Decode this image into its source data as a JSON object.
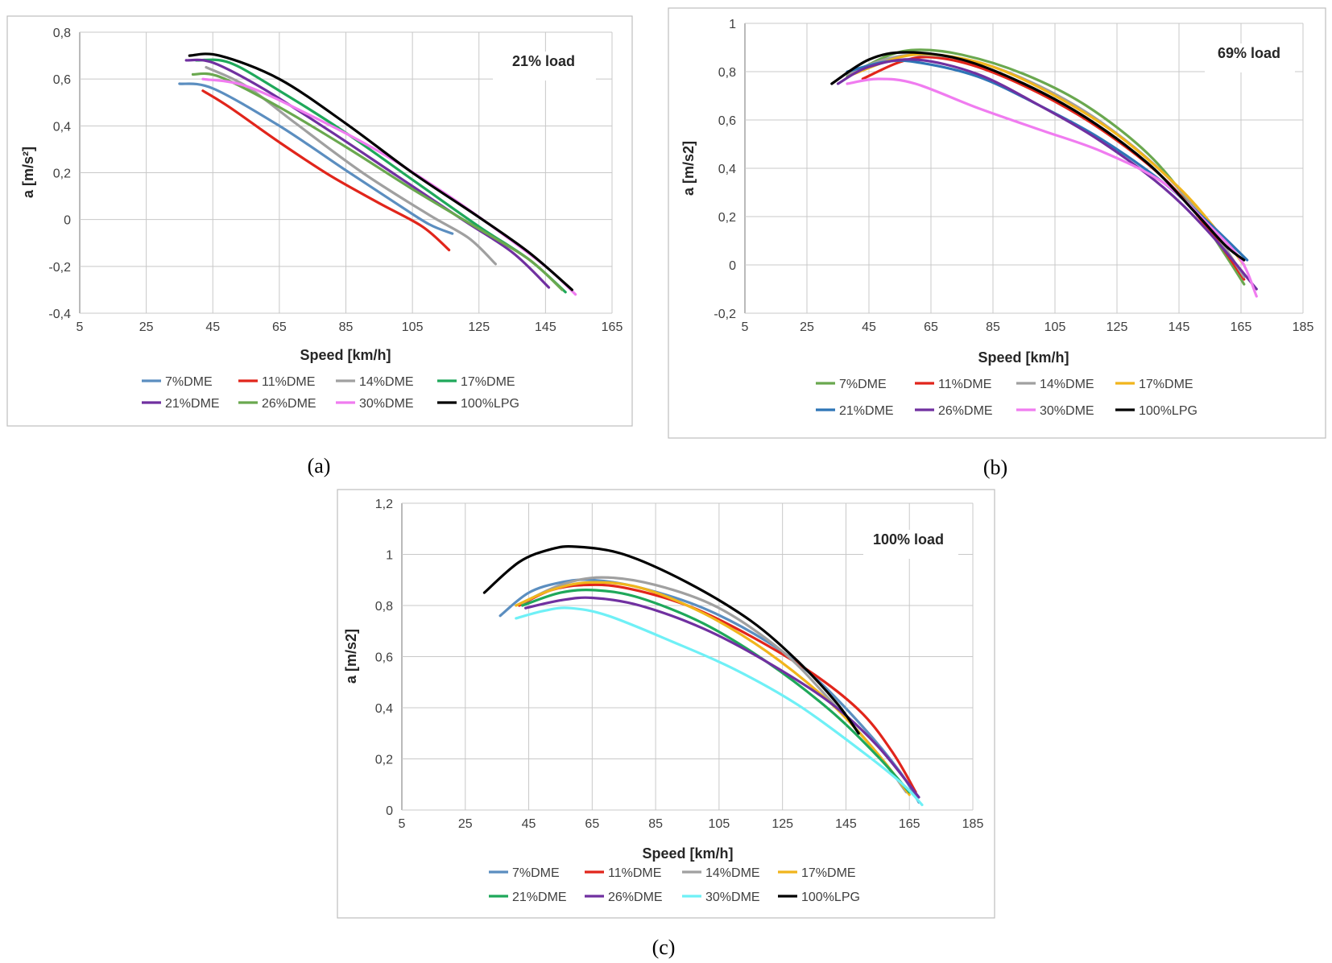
{
  "chart_data": [
    {
      "type": "line",
      "panel": "(a)",
      "caption": "(a)",
      "title": "21% load",
      "xlabel": "Speed [km/h]",
      "ylabel": "a [m/s²]",
      "xlim": [
        5,
        165
      ],
      "ylim": [
        -0.4,
        0.8
      ],
      "xticks": [
        5,
        25,
        45,
        65,
        85,
        105,
        125,
        145,
        165
      ],
      "xtick_labels": [
        "5",
        "25",
        "45",
        "65",
        "85",
        "105",
        "125",
        "145",
        "165"
      ],
      "yticks": [
        -0.4,
        -0.2,
        0,
        0.2,
        0.4,
        0.6,
        0.8
      ],
      "ytick_labels": [
        "-0,4",
        "-0,2",
        "0",
        "0,2",
        "0,4",
        "0,6",
        "0,8"
      ],
      "grid": true,
      "legend_position": "bottom",
      "series": [
        {
          "name": "7%DME",
          "color": "#5b8ec0",
          "points": [
            [
              35,
              0.58
            ],
            [
              45,
              0.56
            ],
            [
              65,
              0.4
            ],
            [
              85,
              0.21
            ],
            [
              100,
              0.07
            ],
            [
              110,
              -0.02
            ],
            [
              117,
              -0.06
            ]
          ]
        },
        {
          "name": "11%DME",
          "color": "#e1251b",
          "points": [
            [
              42,
              0.55
            ],
            [
              50,
              0.48
            ],
            [
              65,
              0.33
            ],
            [
              80,
              0.19
            ],
            [
              95,
              0.07
            ],
            [
              108,
              -0.03
            ],
            [
              116,
              -0.13
            ]
          ]
        },
        {
          "name": "14%DME",
          "color": "#a0a0a0",
          "points": [
            [
              43,
              0.65
            ],
            [
              55,
              0.57
            ],
            [
              70,
              0.41
            ],
            [
              90,
              0.2
            ],
            [
              110,
              0.02
            ],
            [
              122,
              -0.08
            ],
            [
              130,
              -0.19
            ]
          ]
        },
        {
          "name": "17%DME",
          "color": "#1fa85a",
          "points": [
            [
              40,
              0.68
            ],
            [
              50,
              0.67
            ],
            [
              65,
              0.55
            ],
            [
              85,
              0.37
            ],
            [
              105,
              0.17
            ],
            [
              125,
              -0.03
            ],
            [
              140,
              -0.17
            ],
            [
              151,
              -0.31
            ]
          ]
        },
        {
          "name": "21%DME",
          "color": "#7030a0",
          "points": [
            [
              37,
              0.68
            ],
            [
              45,
              0.67
            ],
            [
              60,
              0.56
            ],
            [
              80,
              0.38
            ],
            [
              100,
              0.19
            ],
            [
              120,
              0.0
            ],
            [
              135,
              -0.14
            ],
            [
              146,
              -0.29
            ]
          ]
        },
        {
          "name": "26%DME",
          "color": "#6aa84f",
          "points": [
            [
              39,
              0.62
            ],
            [
              47,
              0.61
            ],
            [
              65,
              0.48
            ],
            [
              85,
              0.31
            ],
            [
              105,
              0.13
            ],
            [
              125,
              -0.04
            ],
            [
              140,
              -0.17
            ],
            [
              150,
              -0.3
            ]
          ]
        },
        {
          "name": "30%DME",
          "color": "#f07cf0",
          "points": [
            [
              42,
              0.6
            ],
            [
              55,
              0.57
            ],
            [
              75,
              0.44
            ],
            [
              95,
              0.29
            ],
            [
              115,
              0.11
            ],
            [
              130,
              -0.04
            ],
            [
              145,
              -0.2
            ],
            [
              154,
              -0.32
            ]
          ]
        },
        {
          "name": "100%LPG",
          "color": "#000000",
          "points": [
            [
              38,
              0.7
            ],
            [
              47,
              0.7
            ],
            [
              65,
              0.6
            ],
            [
              85,
              0.41
            ],
            [
              105,
              0.2
            ],
            [
              125,
              0.01
            ],
            [
              140,
              -0.14
            ],
            [
              153,
              -0.3
            ]
          ]
        }
      ]
    },
    {
      "type": "line",
      "panel": "(b)",
      "caption": "(b)",
      "title": "69% load",
      "xlabel": "Speed [km/h]",
      "ylabel": "a [m/s2]",
      "xlim": [
        5,
        185
      ],
      "ylim": [
        -0.2,
        1
      ],
      "xticks": [
        5,
        25,
        45,
        65,
        85,
        105,
        125,
        145,
        165,
        185
      ],
      "xtick_labels": [
        "5",
        "25",
        "45",
        "65",
        "85",
        "105",
        "125",
        "145",
        "165",
        "185"
      ],
      "yticks": [
        -0.2,
        0,
        0.2,
        0.4,
        0.6,
        0.8,
        1
      ],
      "ytick_labels": [
        "-0,2",
        "0",
        "0,2",
        "0,4",
        "0,6",
        "0,8",
        "1"
      ],
      "grid": true,
      "legend_position": "bottom",
      "series": [
        {
          "name": "7%DME",
          "color": "#6aa84f",
          "points": [
            [
              38,
              0.78
            ],
            [
              50,
              0.86
            ],
            [
              60,
              0.89
            ],
            [
              75,
              0.87
            ],
            [
              95,
              0.79
            ],
            [
              115,
              0.66
            ],
            [
              135,
              0.46
            ],
            [
              150,
              0.23
            ],
            [
              160,
              0.04
            ],
            [
              166,
              -0.08
            ]
          ]
        },
        {
          "name": "11%DME",
          "color": "#e1251b",
          "points": [
            [
              43,
              0.77
            ],
            [
              55,
              0.84
            ],
            [
              65,
              0.86
            ],
            [
              80,
              0.82
            ],
            [
              100,
              0.71
            ],
            [
              120,
              0.56
            ],
            [
              140,
              0.36
            ],
            [
              155,
              0.14
            ],
            [
              166,
              -0.06
            ]
          ]
        },
        {
          "name": "14%DME",
          "color": "#a0a0a0",
          "points": [
            [
              38,
              0.79
            ],
            [
              50,
              0.85
            ],
            [
              62,
              0.87
            ],
            [
              80,
              0.84
            ],
            [
              100,
              0.74
            ],
            [
              120,
              0.59
            ],
            [
              140,
              0.38
            ],
            [
              155,
              0.16
            ],
            [
              166,
              -0.05
            ]
          ]
        },
        {
          "name": "17%DME",
          "color": "#f1b51c",
          "points": [
            [
              40,
              0.79
            ],
            [
              55,
              0.86
            ],
            [
              67,
              0.87
            ],
            [
              85,
              0.82
            ],
            [
              105,
              0.7
            ],
            [
              125,
              0.54
            ],
            [
              145,
              0.32
            ],
            [
              158,
              0.13
            ],
            [
              166,
              0.0
            ]
          ]
        },
        {
          "name": "21%DME",
          "color": "#2e75b6",
          "points": [
            [
              38,
              0.8
            ],
            [
              50,
              0.84
            ],
            [
              60,
              0.84
            ],
            [
              80,
              0.78
            ],
            [
              100,
              0.66
            ],
            [
              120,
              0.52
            ],
            [
              140,
              0.34
            ],
            [
              155,
              0.17
            ],
            [
              167,
              0.02
            ]
          ]
        },
        {
          "name": "26%DME",
          "color": "#7030a0",
          "points": [
            [
              35,
              0.75
            ],
            [
              45,
              0.82
            ],
            [
              60,
              0.85
            ],
            [
              80,
              0.79
            ],
            [
              100,
              0.66
            ],
            [
              120,
              0.51
            ],
            [
              140,
              0.32
            ],
            [
              155,
              0.13
            ],
            [
              170,
              -0.1
            ]
          ]
        },
        {
          "name": "30%DME",
          "color": "#f07cf0",
          "points": [
            [
              38,
              0.75
            ],
            [
              48,
              0.77
            ],
            [
              60,
              0.75
            ],
            [
              80,
              0.65
            ],
            [
              100,
              0.56
            ],
            [
              120,
              0.47
            ],
            [
              140,
              0.34
            ],
            [
              155,
              0.16
            ],
            [
              165,
              0.02
            ],
            [
              170,
              -0.13
            ]
          ]
        },
        {
          "name": "100%LPG",
          "color": "#000000",
          "points": [
            [
              33,
              0.75
            ],
            [
              45,
              0.85
            ],
            [
              57,
              0.88
            ],
            [
              75,
              0.85
            ],
            [
              95,
              0.75
            ],
            [
              115,
              0.61
            ],
            [
              135,
              0.42
            ],
            [
              150,
              0.22
            ],
            [
              160,
              0.08
            ],
            [
              166,
              0.02
            ]
          ]
        }
      ]
    },
    {
      "type": "line",
      "panel": "(c)",
      "caption": "(c)",
      "title": "100% load",
      "xlabel": "Speed [km/h]",
      "ylabel": "a [m/s2]",
      "xlim": [
        5,
        185
      ],
      "ylim": [
        0,
        1.2
      ],
      "xticks": [
        5,
        25,
        45,
        65,
        85,
        105,
        125,
        145,
        165,
        185
      ],
      "xtick_labels": [
        "5",
        "25",
        "45",
        "65",
        "85",
        "105",
        "125",
        "145",
        "165",
        "185"
      ],
      "yticks": [
        0,
        0.2,
        0.4,
        0.6,
        0.8,
        1,
        1.2
      ],
      "ytick_labels": [
        "0",
        "0,2",
        "0,4",
        "0,6",
        "0,8",
        "1",
        "1,2"
      ],
      "grid": true,
      "legend_position": "bottom",
      "series": [
        {
          "name": "7%DME",
          "color": "#5b8ec0",
          "points": [
            [
              36,
              0.76
            ],
            [
              45,
              0.85
            ],
            [
              55,
              0.89
            ],
            [
              65,
              0.9
            ],
            [
              80,
              0.87
            ],
            [
              100,
              0.79
            ],
            [
              120,
              0.66
            ],
            [
              135,
              0.52
            ],
            [
              150,
              0.33
            ],
            [
              162,
              0.15
            ],
            [
              168,
              0.03
            ]
          ]
        },
        {
          "name": "11%DME",
          "color": "#e1251b",
          "points": [
            [
              42,
              0.8
            ],
            [
              52,
              0.86
            ],
            [
              62,
              0.88
            ],
            [
              75,
              0.87
            ],
            [
              95,
              0.8
            ],
            [
              115,
              0.68
            ],
            [
              135,
              0.53
            ],
            [
              150,
              0.38
            ],
            [
              160,
              0.22
            ],
            [
              167,
              0.07
            ]
          ]
        },
        {
          "name": "14%DME",
          "color": "#a0a0a0",
          "points": [
            [
              43,
              0.81
            ],
            [
              55,
              0.88
            ],
            [
              68,
              0.91
            ],
            [
              85,
              0.88
            ],
            [
              105,
              0.79
            ],
            [
              125,
              0.62
            ],
            [
              140,
              0.43
            ],
            [
              155,
              0.22
            ],
            [
              164,
              0.07
            ]
          ]
        },
        {
          "name": "17%DME",
          "color": "#f1b51c",
          "points": [
            [
              41,
              0.8
            ],
            [
              52,
              0.86
            ],
            [
              64,
              0.89
            ],
            [
              80,
              0.87
            ],
            [
              100,
              0.77
            ],
            [
              120,
              0.62
            ],
            [
              140,
              0.42
            ],
            [
              155,
              0.22
            ],
            [
              165,
              0.06
            ]
          ]
        },
        {
          "name": "21%DME",
          "color": "#1fa85a",
          "points": [
            [
              43,
              0.8
            ],
            [
              55,
              0.85
            ],
            [
              66,
              0.86
            ],
            [
              80,
              0.83
            ],
            [
              100,
              0.73
            ],
            [
              120,
              0.58
            ],
            [
              140,
              0.39
            ],
            [
              155,
              0.21
            ],
            [
              165,
              0.07
            ]
          ]
        },
        {
          "name": "26%DME",
          "color": "#7030a0",
          "points": [
            [
              44,
              0.79
            ],
            [
              55,
              0.82
            ],
            [
              65,
              0.83
            ],
            [
              80,
              0.8
            ],
            [
              100,
              0.71
            ],
            [
              120,
              0.58
            ],
            [
              140,
              0.42
            ],
            [
              155,
              0.25
            ],
            [
              168,
              0.05
            ]
          ]
        },
        {
          "name": "30%DME",
          "color": "#6ff0f6",
          "points": [
            [
              41,
              0.75
            ],
            [
              50,
              0.78
            ],
            [
              58,
              0.79
            ],
            [
              70,
              0.76
            ],
            [
              90,
              0.66
            ],
            [
              110,
              0.55
            ],
            [
              130,
              0.41
            ],
            [
              150,
              0.23
            ],
            [
              163,
              0.1
            ],
            [
              169,
              0.02
            ]
          ]
        },
        {
          "name": "100%LPG",
          "color": "#000000",
          "points": [
            [
              31,
              0.85
            ],
            [
              42,
              0.97
            ],
            [
              52,
              1.02
            ],
            [
              60,
              1.03
            ],
            [
              75,
              1.0
            ],
            [
              95,
              0.89
            ],
            [
              115,
              0.74
            ],
            [
              130,
              0.58
            ],
            [
              142,
              0.42
            ],
            [
              149,
              0.3
            ]
          ]
        }
      ]
    }
  ]
}
